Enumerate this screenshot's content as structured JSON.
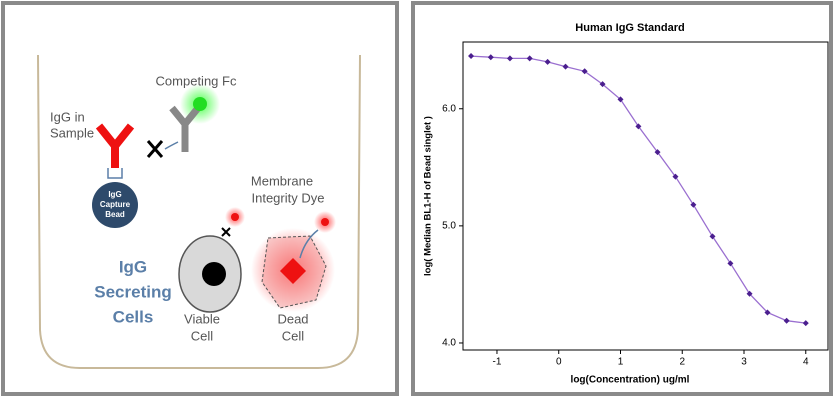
{
  "diagram": {
    "competing_fc": "Competing Fc",
    "igg_in_sample": [
      "IgG in",
      "Sample"
    ],
    "capture_bead": [
      "IgG",
      "Capture",
      "Bead"
    ],
    "membrane_dye": [
      "Membrane",
      "Integrity Dye"
    ],
    "secreting_cells": [
      "IgG",
      "Secreting",
      "Cells"
    ],
    "viable_cell": [
      "Viable",
      "Cell"
    ],
    "dead_cell": [
      "Dead",
      "Cell"
    ]
  },
  "chart_data": {
    "type": "line",
    "title": "Human IgG Standard",
    "x_label": "log(Concentration) ug/ml",
    "y_label": "log( Median BL1-H of Bead singlet )",
    "x": [
      -1.42,
      -1.1,
      -0.79,
      -0.47,
      -0.18,
      0.11,
      0.42,
      0.71,
      1.0,
      1.29,
      1.6,
      1.89,
      2.18,
      2.49,
      2.78,
      3.09,
      3.38,
      3.69,
      4.0
    ],
    "values": [
      6.45,
      6.44,
      6.43,
      6.43,
      6.4,
      6.36,
      6.32,
      6.21,
      6.08,
      5.85,
      5.63,
      5.42,
      5.18,
      4.91,
      4.68,
      4.42,
      4.26,
      4.19,
      4.17
    ],
    "color": "#4b1f8f",
    "line_color": "#9a6fd0",
    "xlim": [
      -1.55,
      4.36
    ],
    "ylim": [
      3.94,
      6.57
    ],
    "xticks": [
      -1,
      0,
      1,
      2,
      3,
      4
    ],
    "yticks": [
      {
        "value": 4,
        "label": "4.0"
      },
      {
        "value": 5,
        "label": "5.0"
      },
      {
        "value": 6,
        "label": "6.0"
      }
    ]
  }
}
